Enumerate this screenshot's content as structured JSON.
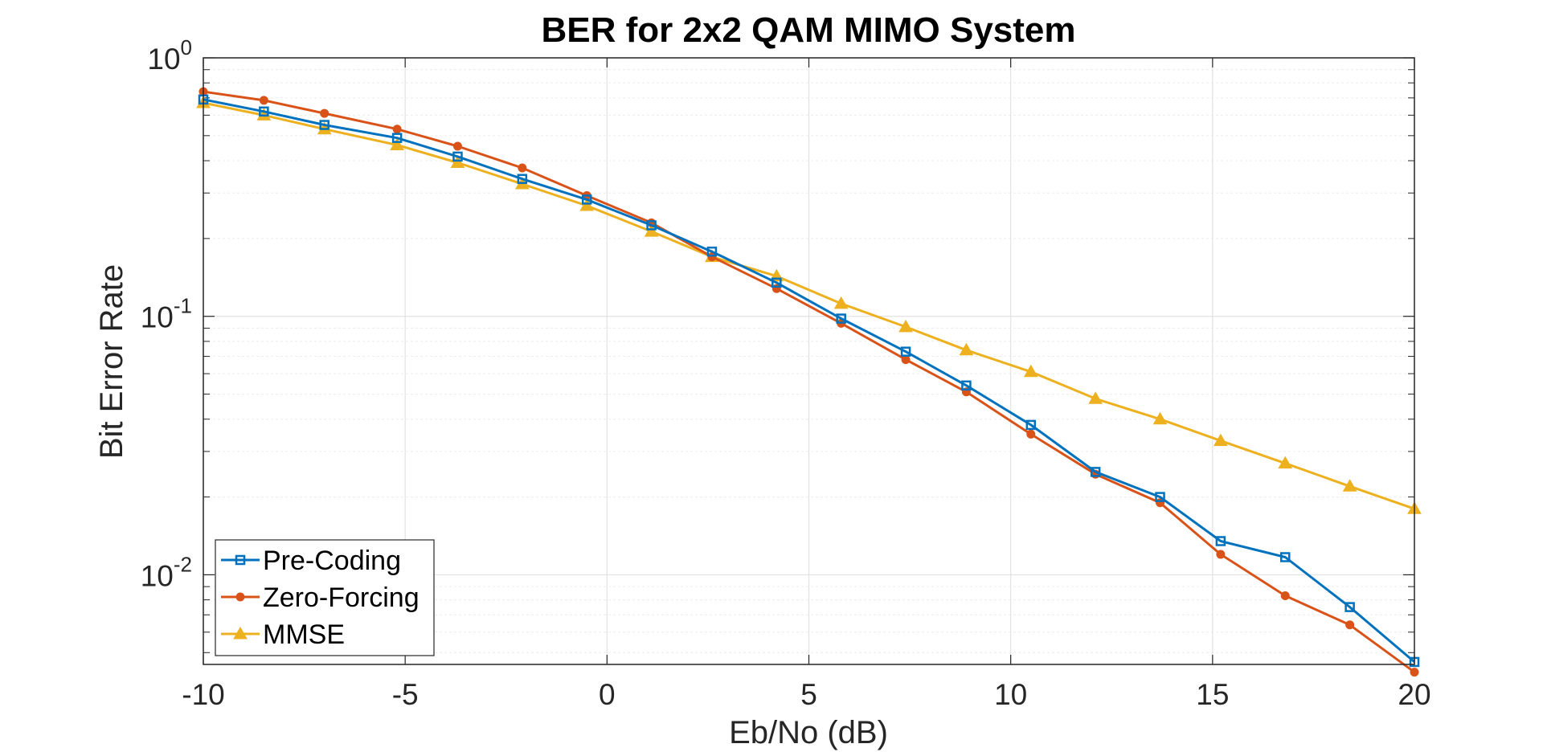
{
  "chart_data": {
    "type": "line",
    "title": "BER for 2x2 QAM MIMO System",
    "xlabel": "Eb/No (dB)",
    "ylabel": "Bit Error Rate",
    "xlim": [
      -10,
      20
    ],
    "ylim": [
      0.0045,
      1
    ],
    "yscale": "log",
    "grid": true,
    "legend_position": "bottom-left",
    "x_ticks": [
      -10,
      -5,
      0,
      5,
      10,
      15,
      20
    ],
    "x_tick_labels": [
      "-10",
      "-5",
      "0",
      "5",
      "10",
      "15",
      "20"
    ],
    "y_ticks": [
      1,
      0.1,
      0.01
    ],
    "y_tick_labels": [
      {
        "base": "10",
        "exp": "0"
      },
      {
        "base": "10",
        "exp": "-1"
      },
      {
        "base": "10",
        "exp": "-2"
      }
    ],
    "x": [
      -10,
      -8.5,
      -7,
      -5.2,
      -3.7,
      -2.1,
      -0.5,
      1.1,
      2.6,
      4.2,
      5.8,
      7.4,
      8.9,
      10.5,
      12.1,
      13.7,
      15.2,
      16.8,
      18.4,
      20
    ],
    "series": [
      {
        "name": "Pre-Coding",
        "color": "#0072BD",
        "marker": "square",
        "values": [
          0.69,
          0.62,
          0.55,
          0.49,
          0.415,
          0.34,
          0.283,
          0.225,
          0.178,
          0.135,
          0.098,
          0.073,
          0.054,
          0.038,
          0.025,
          0.02,
          0.0135,
          0.0117,
          0.0075,
          0.0046
        ]
      },
      {
        "name": "Zero-Forcing",
        "color": "#D95319",
        "marker": "circle",
        "values": [
          0.74,
          0.685,
          0.61,
          0.53,
          0.455,
          0.375,
          0.293,
          0.23,
          0.17,
          0.128,
          0.094,
          0.068,
          0.051,
          0.035,
          0.0245,
          0.019,
          0.012,
          0.0083,
          0.0064,
          0.0042
        ]
      },
      {
        "name": "MMSE",
        "color": "#EDB120",
        "marker": "triangle",
        "values": [
          0.67,
          0.6,
          0.53,
          0.46,
          0.393,
          0.325,
          0.268,
          0.213,
          0.17,
          0.143,
          0.112,
          0.091,
          0.074,
          0.061,
          0.048,
          0.04,
          0.033,
          0.027,
          0.022,
          0.018
        ]
      }
    ]
  }
}
